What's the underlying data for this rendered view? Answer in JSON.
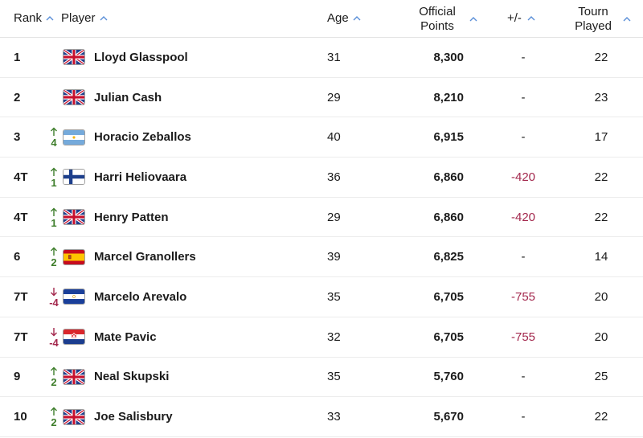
{
  "header": {
    "rank": "Rank",
    "player": "Player",
    "age": "Age",
    "points_line1": "Official",
    "points_line2": "Points",
    "diff": "+/-",
    "played_line1": "Tourn",
    "played_line2": "Played"
  },
  "colors": {
    "accent": "#5a8fd8",
    "up": "#3d7d2a",
    "down": "#a3284d"
  },
  "rows": [
    {
      "rank": "1",
      "move": "",
      "dir": "none",
      "flag": "gb-flag-icon",
      "player": "Lloyd Glasspool",
      "age": "31",
      "points": "8,300",
      "diff": "-",
      "played": "22"
    },
    {
      "rank": "2",
      "move": "",
      "dir": "none",
      "flag": "gb-flag-icon",
      "player": "Julian Cash",
      "age": "29",
      "points": "8,210",
      "diff": "-",
      "played": "23"
    },
    {
      "rank": "3",
      "move": "4",
      "dir": "up",
      "flag": "ar-flag-icon",
      "player": "Horacio Zeballos",
      "age": "40",
      "points": "6,915",
      "diff": "-",
      "played": "17"
    },
    {
      "rank": "4T",
      "move": "1",
      "dir": "up",
      "flag": "fi-flag-icon",
      "player": "Harri Heliovaara",
      "age": "36",
      "points": "6,860",
      "diff": "-420",
      "played": "22"
    },
    {
      "rank": "4T",
      "move": "1",
      "dir": "up",
      "flag": "gb-flag-icon",
      "player": "Henry Patten",
      "age": "29",
      "points": "6,860",
      "diff": "-420",
      "played": "22"
    },
    {
      "rank": "6",
      "move": "2",
      "dir": "up",
      "flag": "es-flag-icon",
      "player": "Marcel Granollers",
      "age": "39",
      "points": "6,825",
      "diff": "-",
      "played": "14"
    },
    {
      "rank": "7T",
      "move": "-4",
      "dir": "down",
      "flag": "sv-flag-icon",
      "player": "Marcelo Arevalo",
      "age": "35",
      "points": "6,705",
      "diff": "-755",
      "played": "20"
    },
    {
      "rank": "7T",
      "move": "-4",
      "dir": "down",
      "flag": "hr-flag-icon",
      "player": "Mate Pavic",
      "age": "32",
      "points": "6,705",
      "diff": "-755",
      "played": "20"
    },
    {
      "rank": "9",
      "move": "2",
      "dir": "up",
      "flag": "gb-flag-icon",
      "player": "Neal Skupski",
      "age": "35",
      "points": "5,760",
      "diff": "-",
      "played": "25"
    },
    {
      "rank": "10",
      "move": "2",
      "dir": "up",
      "flag": "gb-flag-icon",
      "player": "Joe Salisbury",
      "age": "33",
      "points": "5,670",
      "diff": "-",
      "played": "22"
    }
  ]
}
